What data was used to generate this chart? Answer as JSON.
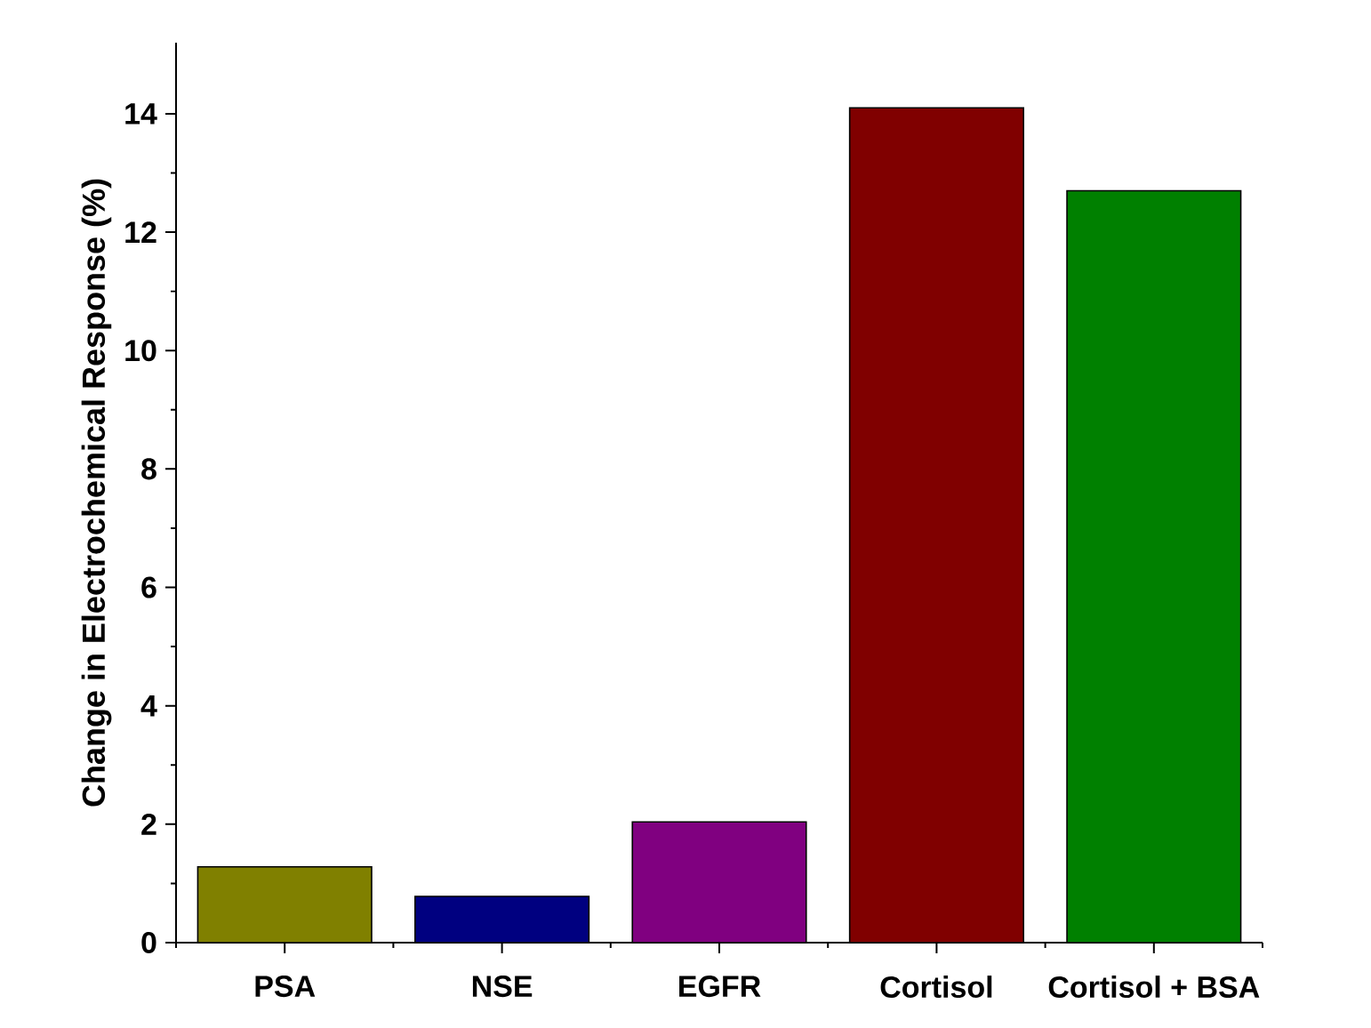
{
  "chart_data": {
    "type": "bar",
    "ylabel": "Change in Electrochemical Response (%)",
    "categories": [
      "PSA",
      "NSE",
      "EGFR",
      "Cortisol",
      "Cortisol + BSA"
    ],
    "values": [
      1.28,
      0.78,
      2.04,
      14.1,
      12.7
    ],
    "colors": [
      "#808000",
      "#000080",
      "#800080",
      "#800000",
      "#008000"
    ],
    "ylim": [
      0,
      15.2
    ],
    "yticks": [
      0,
      2,
      4,
      6,
      8,
      10,
      12,
      14
    ]
  }
}
